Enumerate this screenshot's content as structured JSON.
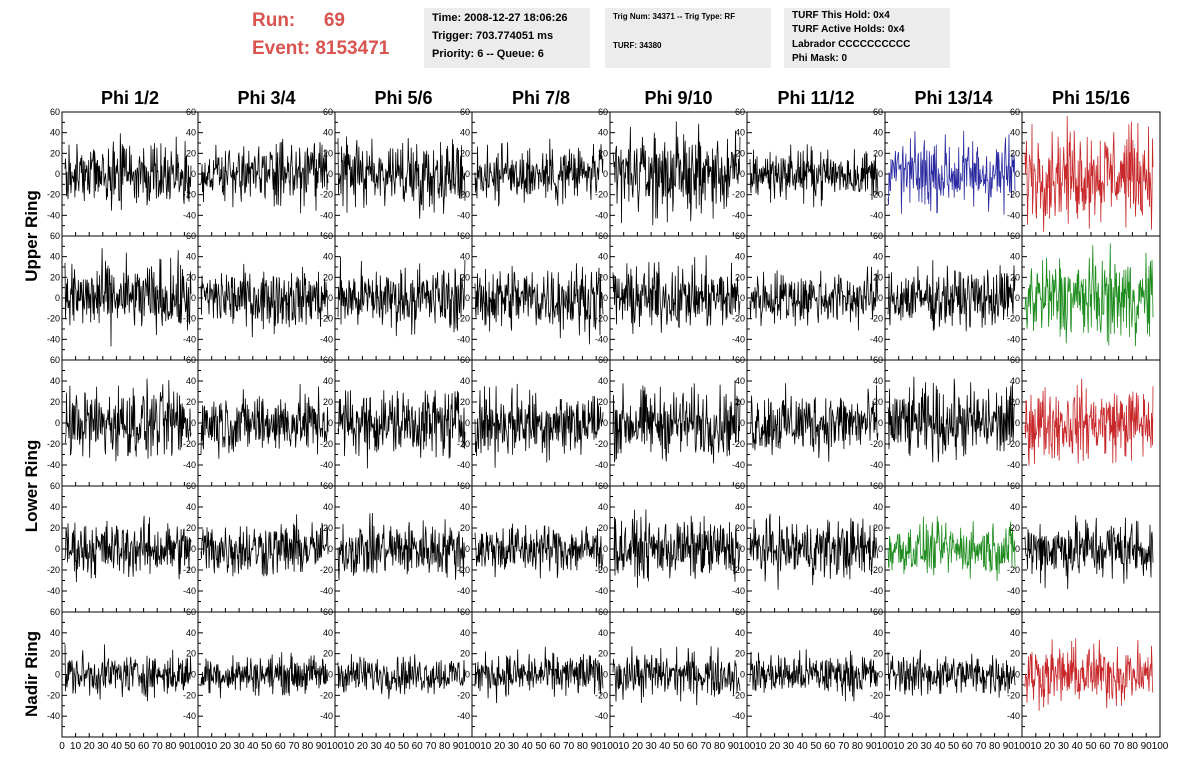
{
  "header": {
    "run_label": "Run:",
    "run_value": "69",
    "event_label": "Event:",
    "event_value": "8153471",
    "time_info": [
      "Time: 2008-12-27 18:06:26",
      "Trigger: 703.774051 ms",
      "Priority: 6 -- Queue: 6"
    ],
    "trig_info": [
      "Trig Num: 34371 -- Trig Type: RF",
      "TURF: 34380"
    ],
    "turf_info": [
      "TURF This Hold: 0x4",
      "TURF Active Holds: 0x4",
      "Labrador CCCCCCCCCC",
      "Phi Mask: 0"
    ]
  },
  "colors": {
    "header_red": "#d9534f",
    "panel_bg": "#ececec",
    "trace_black": "#000000",
    "trace_blue": "#2a2aa0",
    "trace_red": "#c8282a",
    "trace_green": "#1e8c1e"
  },
  "chart_data": {
    "type": "line",
    "columns": [
      "Phi 1/2",
      "Phi 3/4",
      "Phi 5/6",
      "Phi 7/8",
      "Phi 9/10",
      "Phi 11/12",
      "Phi 13/14",
      "Phi 15/16"
    ],
    "rows": [
      "Upper Ring",
      "",
      "Lower Ring",
      "",
      "Nadir Ring"
    ],
    "xlim": [
      0,
      100
    ],
    "ylim": [
      -60,
      60
    ],
    "x_ticks": [
      0,
      10,
      20,
      30,
      40,
      50,
      60,
      70,
      80,
      90,
      100
    ],
    "y_ticks": [
      -40,
      -20,
      0,
      20,
      40,
      60
    ],
    "x_tick_labels_per_panel": [
      "10",
      "20",
      "30",
      "40",
      "50",
      "60",
      "70",
      "80",
      "90",
      "100"
    ],
    "x_tick_labels_first_panel": [
      "0",
      "10",
      "20",
      "30",
      "40",
      "50",
      "60",
      "70",
      "80",
      "90",
      "100"
    ],
    "trace_colors": [
      [
        "black",
        "black",
        "black",
        "black",
        "black",
        "black",
        "blue",
        "red"
      ],
      [
        "black",
        "black",
        "black",
        "black",
        "black",
        "black",
        "black",
        "green"
      ],
      [
        "black",
        "black",
        "black",
        "black",
        "black",
        "black",
        "black",
        "red"
      ],
      [
        "black",
        "black",
        "black",
        "black",
        "black",
        "black",
        "green",
        "black"
      ],
      [
        "black",
        "black",
        "black",
        "black",
        "black",
        "black",
        "black",
        "red"
      ]
    ],
    "trace_amplitudes": [
      [
        15,
        14,
        16,
        14,
        19,
        12,
        17,
        22
      ],
      [
        17,
        14,
        15,
        16,
        15,
        13,
        14,
        20
      ],
      [
        17,
        14,
        16,
        16,
        16,
        15,
        17,
        17
      ],
      [
        13,
        13,
        13,
        12,
        14,
        14,
        12,
        15
      ],
      [
        10,
        9,
        9,
        10,
        11,
        10,
        10,
        14
      ]
    ],
    "samples_per_trace": 256
  }
}
